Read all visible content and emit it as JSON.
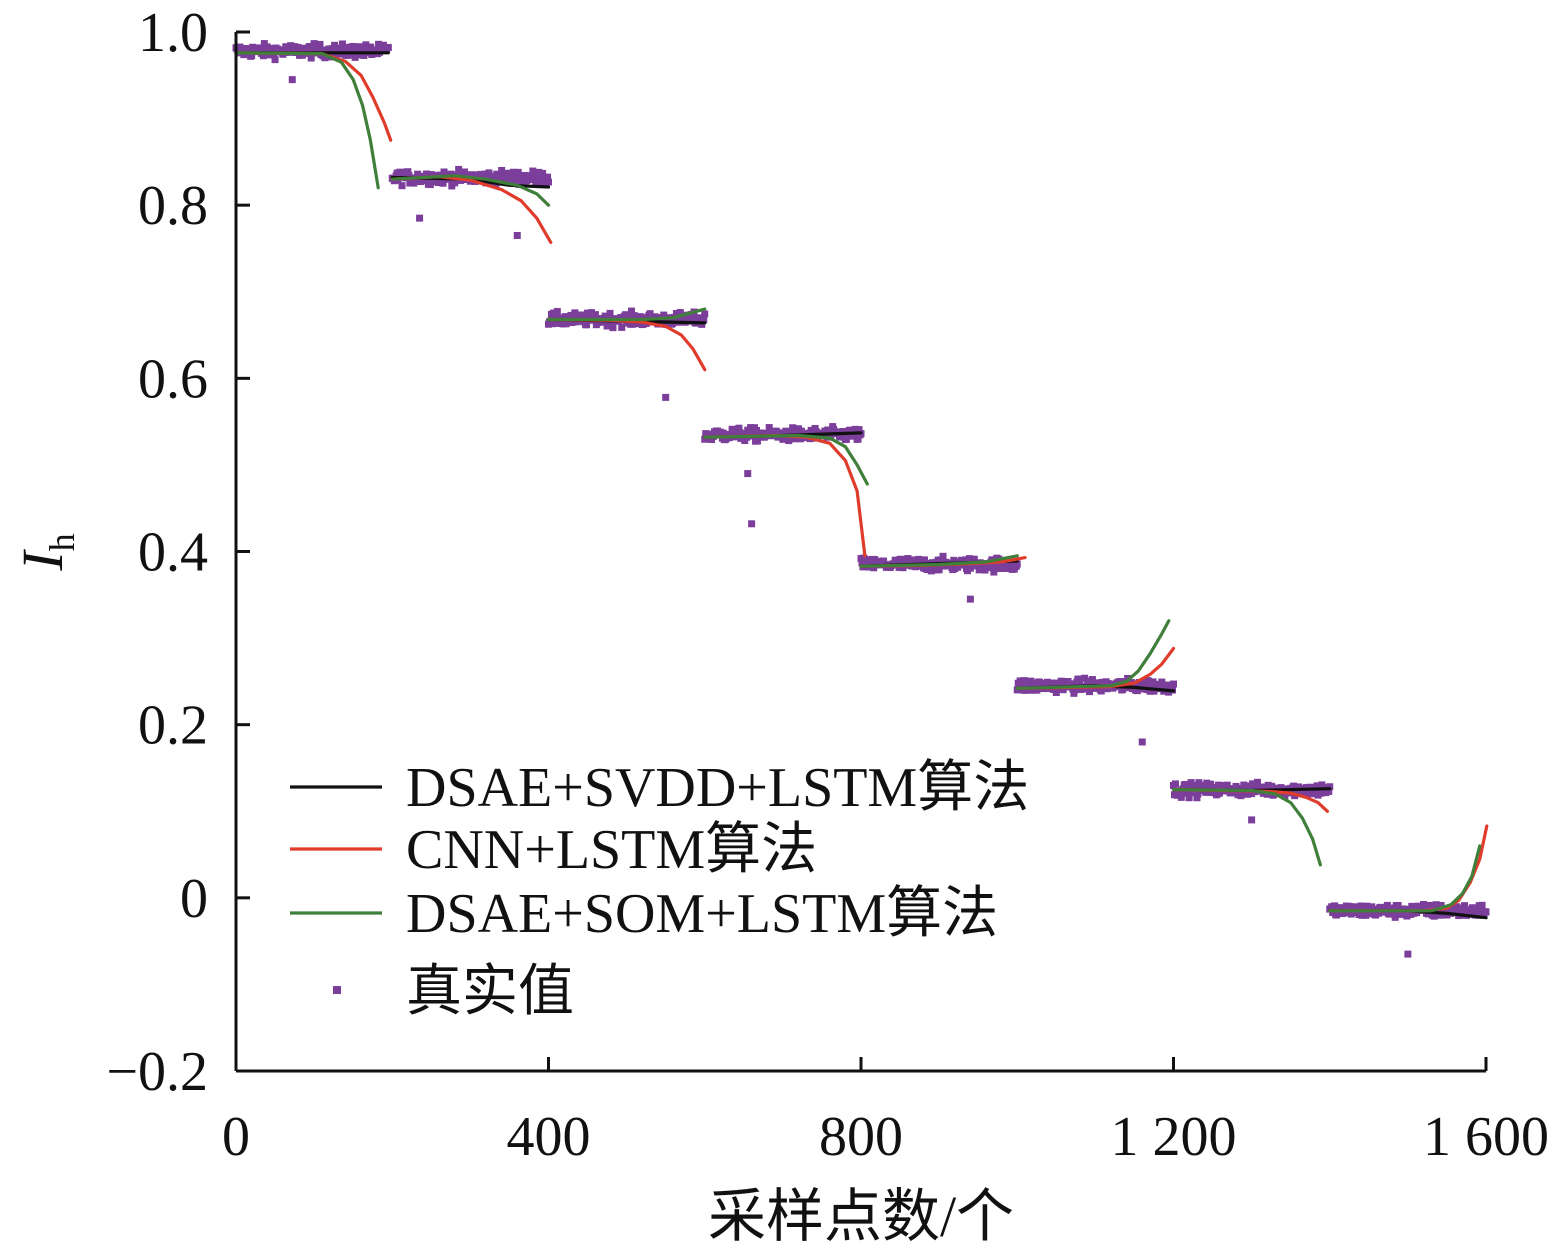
{
  "chart_data": {
    "type": "line",
    "xlabel": "采样点数/个",
    "ylabel_main": "I",
    "ylabel_sub": "h",
    "xlim": [
      0,
      1600
    ],
    "ylim": [
      -0.2,
      1.0
    ],
    "x_ticks": [
      {
        "value": 0,
        "label": "0"
      },
      {
        "value": 400,
        "label": "400"
      },
      {
        "value": 800,
        "label": "800"
      },
      {
        "value": 1200,
        "label": "1 200"
      },
      {
        "value": 1600,
        "label": "1 600"
      }
    ],
    "y_ticks": [
      {
        "value": 1.0,
        "label": "1.0"
      },
      {
        "value": 0.8,
        "label": "0.8"
      },
      {
        "value": 0.6,
        "label": "0.6"
      },
      {
        "value": 0.4,
        "label": "0.4"
      },
      {
        "value": 0.2,
        "label": "0.2"
      },
      {
        "value": 0.0,
        "label": "0"
      },
      {
        "value": -0.2,
        "label": "−0.2"
      }
    ],
    "grid": false,
    "legend_position": "bottom-left",
    "legend": [
      {
        "label": "DSAE+SVDD+LSTM算法",
        "kind": "line",
        "color": "#111111"
      },
      {
        "label": "CNN+LSTM算法",
        "kind": "line",
        "color": "#e03c2c"
      },
      {
        "label": "DSAE+SOM+LSTM算法",
        "kind": "line",
        "color": "#3f7f3a"
      },
      {
        "label": "真实值",
        "kind": "marker",
        "color": "#7b3f9b"
      }
    ],
    "true_values": {
      "name": "真实值",
      "color": "#7b3f9b",
      "segments": [
        {
          "x_start": 0,
          "x_end": 195,
          "level": 0.978
        },
        {
          "x_start": 200,
          "x_end": 400,
          "level": 0.832
        },
        {
          "x_start": 400,
          "x_end": 600,
          "level": 0.668
        },
        {
          "x_start": 600,
          "x_end": 800,
          "level": 0.535
        },
        {
          "x_start": 800,
          "x_end": 1000,
          "level": 0.385
        },
        {
          "x_start": 1000,
          "x_end": 1200,
          "level": 0.245
        },
        {
          "x_start": 1200,
          "x_end": 1400,
          "level": 0.125
        },
        {
          "x_start": 1400,
          "x_end": 1600,
          "level": -0.015
        }
      ],
      "outliers": [
        {
          "x": 72,
          "y": 0.945
        },
        {
          "x": 235,
          "y": 0.785
        },
        {
          "x": 360,
          "y": 0.765
        },
        {
          "x": 550,
          "y": 0.578
        },
        {
          "x": 660,
          "y": 0.432
        },
        {
          "x": 655,
          "y": 0.49
        },
        {
          "x": 940,
          "y": 0.345
        },
        {
          "x": 1160,
          "y": 0.18
        },
        {
          "x": 1300,
          "y": 0.09
        },
        {
          "x": 1500,
          "y": -0.065
        }
      ]
    },
    "series": [
      {
        "name": "DSAE+SVDD+LSTM算法",
        "color": "#111111",
        "segments": [
          [
            [
              0,
              0.976
            ],
            [
              195,
              0.976
            ]
          ],
          [
            [
              200,
              0.832
            ],
            [
              300,
              0.83
            ],
            [
              350,
              0.823
            ],
            [
              400,
              0.821
            ]
          ],
          [
            [
              400,
              0.668
            ],
            [
              500,
              0.666
            ],
            [
              600,
              0.664
            ]
          ],
          [
            [
              600,
              0.532
            ],
            [
              700,
              0.534
            ],
            [
              800,
              0.537
            ]
          ],
          [
            [
              800,
              0.383
            ],
            [
              900,
              0.386
            ],
            [
              1000,
              0.389
            ]
          ],
          [
            [
              1000,
              0.242
            ],
            [
              1100,
              0.245
            ],
            [
              1150,
              0.243
            ],
            [
              1200,
              0.239
            ]
          ],
          [
            [
              1200,
              0.125
            ],
            [
              1300,
              0.124
            ],
            [
              1400,
              0.126
            ]
          ],
          [
            [
              1400,
              -0.015
            ],
            [
              1500,
              -0.015
            ],
            [
              1550,
              -0.018
            ],
            [
              1600,
              -0.023
            ]
          ]
        ]
      },
      {
        "name": "CNN+LSTM算法",
        "color": "#e03c2c",
        "segments": [
          [
            [
              0,
              0.976
            ],
            [
              110,
              0.975
            ],
            [
              140,
              0.966
            ],
            [
              160,
              0.95
            ],
            [
              175,
              0.925
            ],
            [
              190,
              0.895
            ],
            [
              198,
              0.875
            ]
          ],
          [
            [
              200,
              0.83
            ],
            [
              260,
              0.833
            ],
            [
              300,
              0.829
            ],
            [
              340,
              0.818
            ],
            [
              365,
              0.805
            ],
            [
              385,
              0.785
            ],
            [
              403,
              0.757
            ]
          ],
          [
            [
              400,
              0.668
            ],
            [
              480,
              0.667
            ],
            [
              520,
              0.665
            ],
            [
              550,
              0.66
            ],
            [
              570,
              0.65
            ],
            [
              585,
              0.634
            ],
            [
              600,
              0.61
            ]
          ],
          [
            [
              600,
              0.532
            ],
            [
              690,
              0.534
            ],
            [
              730,
              0.532
            ],
            [
              760,
              0.525
            ],
            [
              780,
              0.505
            ],
            [
              795,
              0.47
            ],
            [
              805,
              0.395
            ]
          ],
          [
            [
              800,
              0.383
            ],
            [
              880,
              0.384
            ],
            [
              940,
              0.386
            ],
            [
              980,
              0.388
            ],
            [
              1010,
              0.393
            ]
          ],
          [
            [
              1000,
              0.242
            ],
            [
              1120,
              0.244
            ],
            [
              1150,
              0.248
            ],
            [
              1170,
              0.258
            ],
            [
              1185,
              0.27
            ],
            [
              1200,
              0.288
            ]
          ],
          [
            [
              1200,
              0.125
            ],
            [
              1320,
              0.123
            ],
            [
              1350,
              0.121
            ],
            [
              1370,
              0.116
            ],
            [
              1385,
              0.11
            ],
            [
              1397,
              0.1
            ]
          ],
          [
            [
              1400,
              -0.015
            ],
            [
              1520,
              -0.015
            ],
            [
              1550,
              -0.012
            ],
            [
              1565,
              -0.003
            ],
            [
              1580,
              0.018
            ],
            [
              1592,
              0.045
            ],
            [
              1601,
              0.083
            ]
          ]
        ]
      },
      {
        "name": "DSAE+SOM+LSTM算法",
        "color": "#3f7f3a",
        "segments": [
          [
            [
              0,
              0.976
            ],
            [
              110,
              0.975
            ],
            [
              135,
              0.965
            ],
            [
              150,
              0.945
            ],
            [
              162,
              0.915
            ],
            [
              172,
              0.875
            ],
            [
              182,
              0.82
            ]
          ],
          [
            [
              200,
              0.83
            ],
            [
              280,
              0.834
            ],
            [
              320,
              0.83
            ],
            [
              360,
              0.823
            ],
            [
              385,
              0.813
            ],
            [
              400,
              0.8
            ]
          ],
          [
            [
              400,
              0.668
            ],
            [
              520,
              0.668
            ],
            [
              560,
              0.67
            ],
            [
              600,
              0.68
            ]
          ],
          [
            [
              600,
              0.532
            ],
            [
              720,
              0.534
            ],
            [
              760,
              0.531
            ],
            [
              780,
              0.521
            ],
            [
              795,
              0.5
            ],
            [
              808,
              0.478
            ]
          ],
          [
            [
              800,
              0.383
            ],
            [
              900,
              0.385
            ],
            [
              960,
              0.388
            ],
            [
              1000,
              0.395
            ]
          ],
          [
            [
              1000,
              0.242
            ],
            [
              1120,
              0.245
            ],
            [
              1140,
              0.25
            ],
            [
              1155,
              0.262
            ],
            [
              1170,
              0.282
            ],
            [
              1185,
              0.305
            ],
            [
              1194,
              0.32
            ]
          ],
          [
            [
              1200,
              0.125
            ],
            [
              1300,
              0.124
            ],
            [
              1330,
              0.12
            ],
            [
              1350,
              0.11
            ],
            [
              1365,
              0.092
            ],
            [
              1378,
              0.068
            ],
            [
              1388,
              0.038
            ]
          ],
          [
            [
              1400,
              -0.015
            ],
            [
              1530,
              -0.015
            ],
            [
              1555,
              -0.008
            ],
            [
              1570,
              0.005
            ],
            [
              1582,
              0.025
            ],
            [
              1592,
              0.06
            ]
          ]
        ]
      }
    ]
  }
}
